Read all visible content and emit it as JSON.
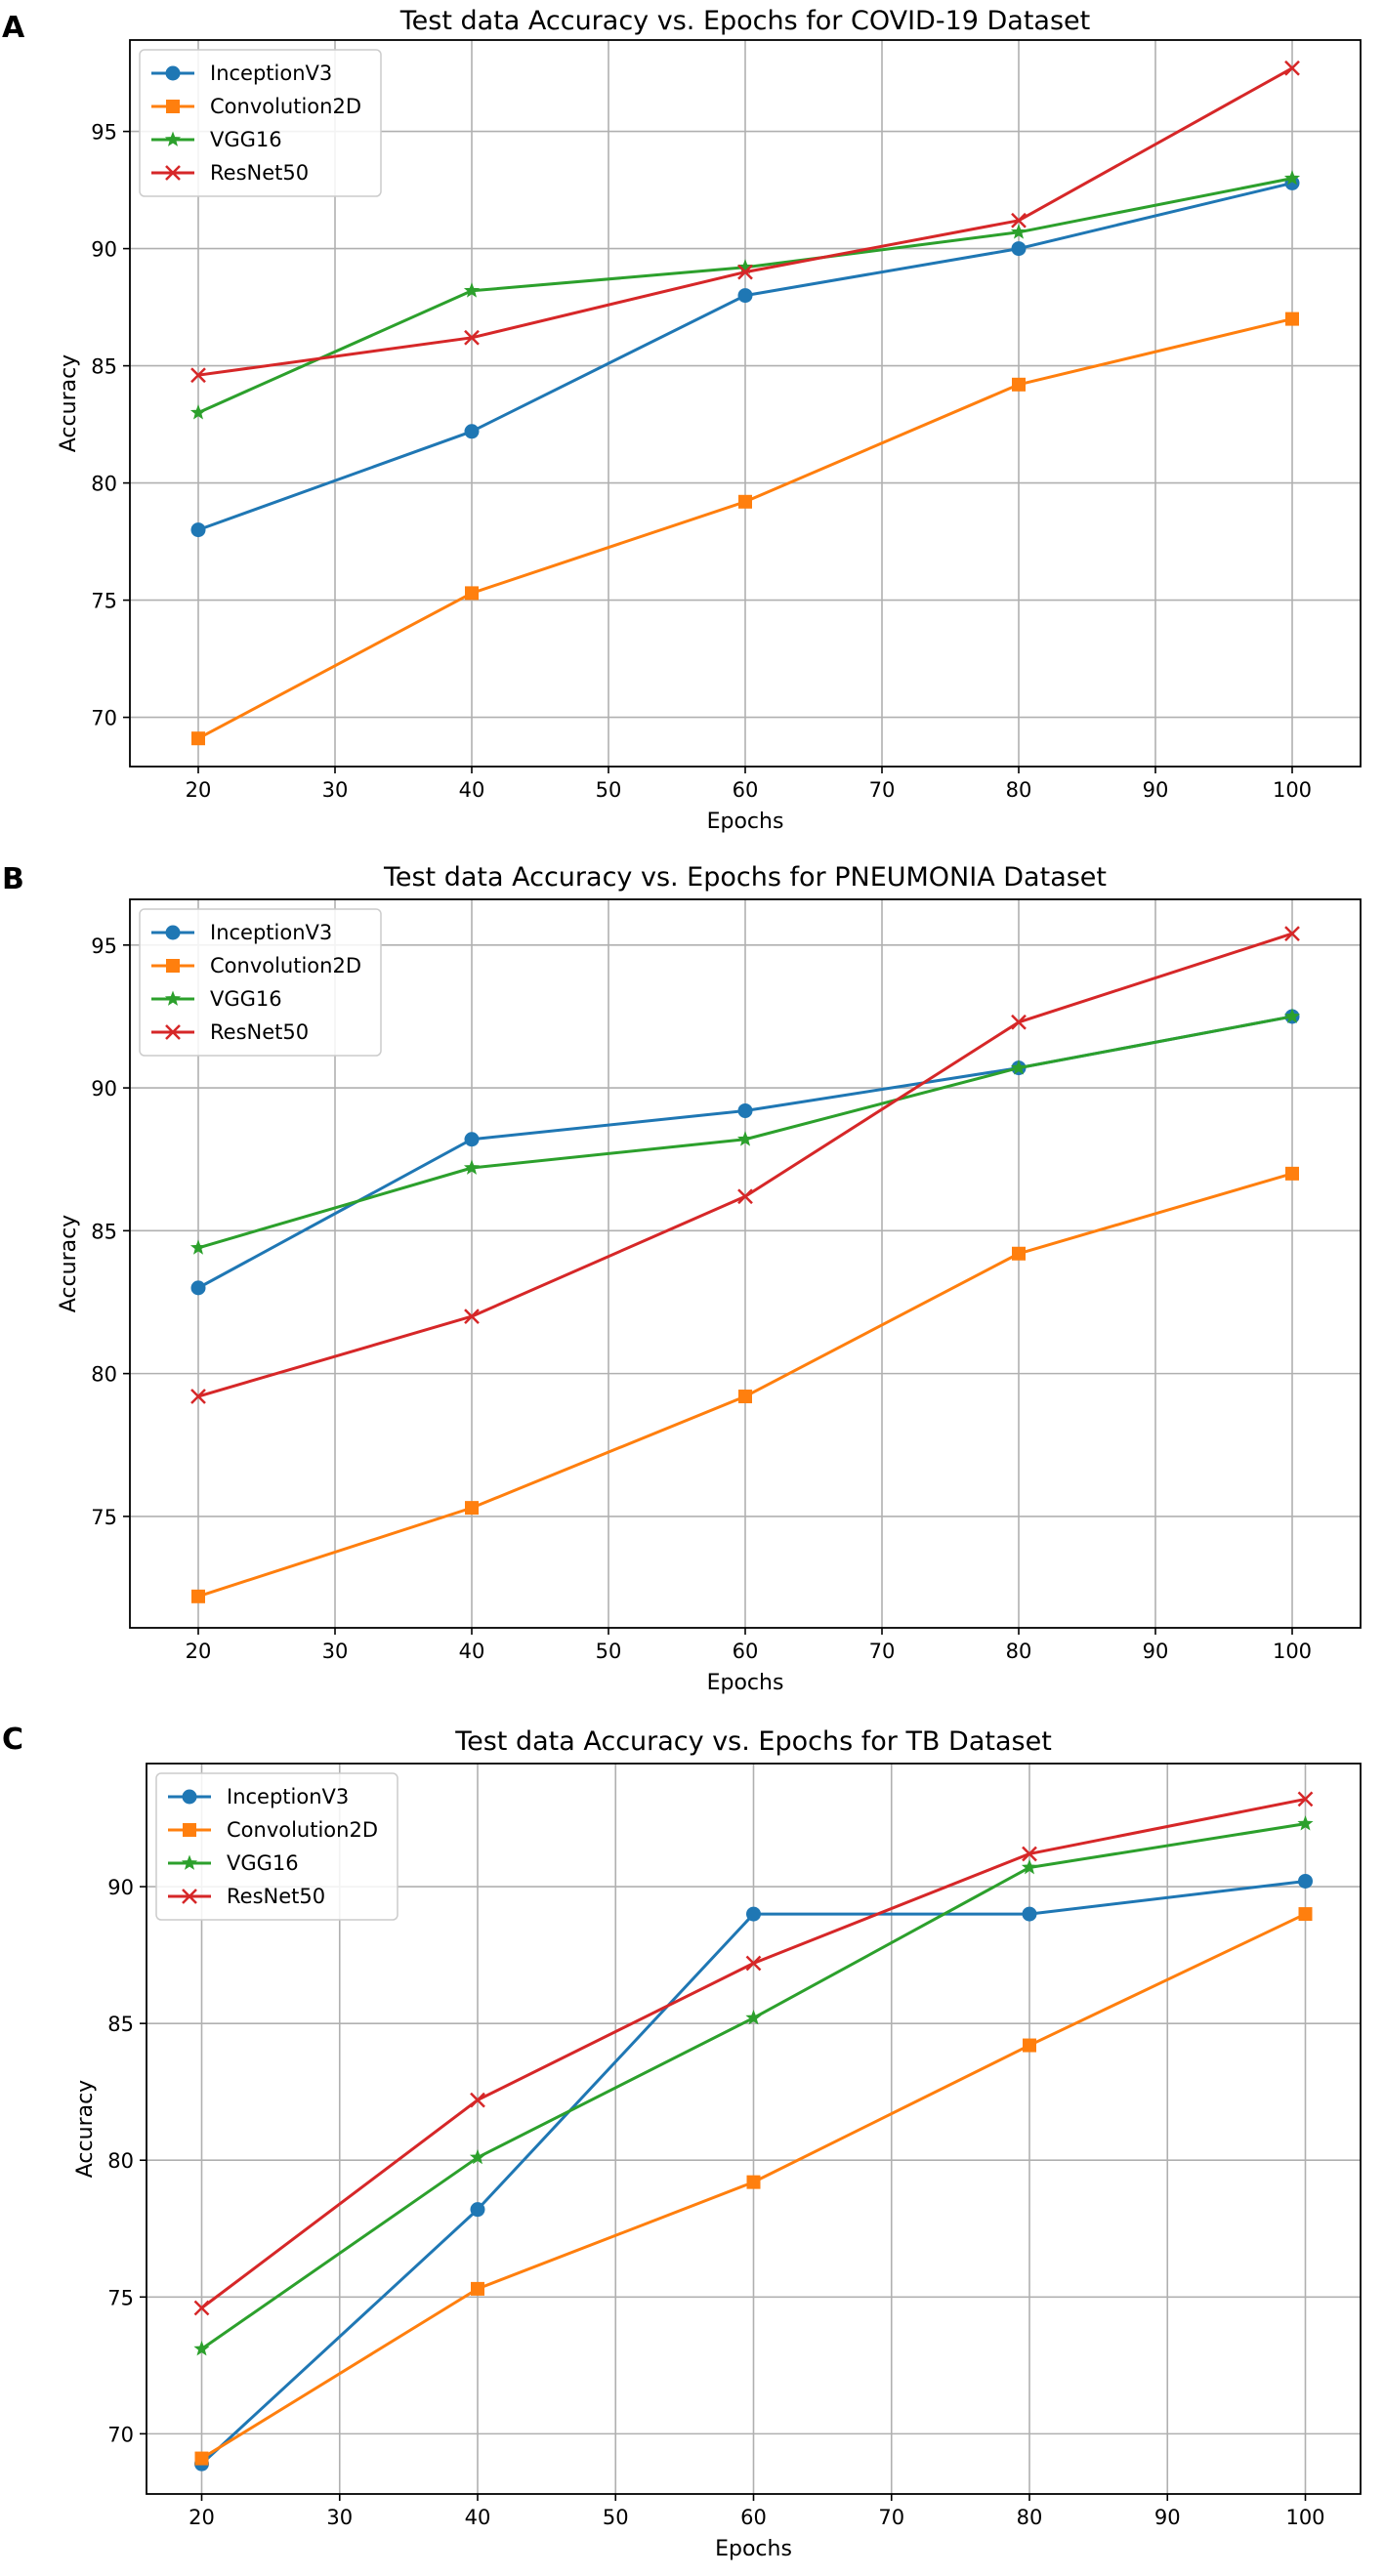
{
  "chart_data": [
    {
      "panel": "A",
      "type": "line",
      "title": "Test data Accuracy vs. Epochs for COVID-19 Dataset",
      "xlabel": "Epochs",
      "ylabel": "Accuracy",
      "xlim": [
        15,
        105
      ],
      "ylim": [
        67.9,
        98.9
      ],
      "xticks": [
        20,
        30,
        40,
        50,
        60,
        70,
        80,
        90,
        100
      ],
      "yticks": [
        70,
        75,
        80,
        85,
        90,
        95
      ],
      "grid": true,
      "legend": "top-left",
      "x": [
        20,
        40,
        60,
        80,
        100
      ],
      "series": [
        {
          "name": "InceptionV3",
          "color": "#1f77b4",
          "marker": "circle",
          "values": [
            78.0,
            82.2,
            88.0,
            90.0,
            92.8
          ]
        },
        {
          "name": "Convolution2D",
          "color": "#ff7f0e",
          "marker": "square",
          "values": [
            69.1,
            75.3,
            79.2,
            84.2,
            87.0
          ]
        },
        {
          "name": "VGG16",
          "color": "#2ca02c",
          "marker": "star",
          "values": [
            83.0,
            88.2,
            89.2,
            90.7,
            93.0
          ]
        },
        {
          "name": "ResNet50",
          "color": "#d62728",
          "marker": "x",
          "values": [
            84.6,
            86.2,
            89.0,
            91.2,
            97.7
          ]
        }
      ]
    },
    {
      "panel": "B",
      "type": "line",
      "title": "Test data Accuracy vs. Epochs for PNEUMONIA Dataset",
      "xlabel": "Epochs",
      "ylabel": "Accuracy",
      "xlim": [
        15,
        105
      ],
      "ylim": [
        71.1,
        96.6
      ],
      "xticks": [
        20,
        30,
        40,
        50,
        60,
        70,
        80,
        90,
        100
      ],
      "yticks": [
        75,
        80,
        85,
        90,
        95
      ],
      "grid": true,
      "legend": "top-left",
      "x": [
        20,
        40,
        60,
        80,
        100
      ],
      "series": [
        {
          "name": "InceptionV3",
          "color": "#1f77b4",
          "marker": "circle",
          "values": [
            83.0,
            88.2,
            89.2,
            90.7,
            92.5
          ]
        },
        {
          "name": "Convolution2D",
          "color": "#ff7f0e",
          "marker": "square",
          "values": [
            72.2,
            75.3,
            79.2,
            84.2,
            87.0
          ]
        },
        {
          "name": "VGG16",
          "color": "#2ca02c",
          "marker": "star",
          "values": [
            84.4,
            87.2,
            88.2,
            90.7,
            92.5
          ]
        },
        {
          "name": "ResNet50",
          "color": "#d62728",
          "marker": "x",
          "values": [
            79.2,
            82.0,
            86.2,
            92.3,
            95.4
          ]
        }
      ]
    },
    {
      "panel": "C",
      "type": "line",
      "title": "Test data Accuracy vs. Epochs for TB Dataset",
      "xlabel": "Epochs",
      "ylabel": "Accuracy",
      "xlim": [
        16,
        104
      ],
      "ylim": [
        67.8,
        94.5
      ],
      "xticks": [
        20,
        30,
        40,
        50,
        60,
        70,
        80,
        90,
        100
      ],
      "yticks": [
        70,
        75,
        80,
        85,
        90
      ],
      "grid": true,
      "legend": "top-left",
      "x": [
        20,
        40,
        60,
        80,
        100
      ],
      "series": [
        {
          "name": "InceptionV3",
          "color": "#1f77b4",
          "marker": "circle",
          "values": [
            68.9,
            78.2,
            89.0,
            89.0,
            90.2
          ]
        },
        {
          "name": "Convolution2D",
          "color": "#ff7f0e",
          "marker": "square",
          "values": [
            69.1,
            75.3,
            79.2,
            84.2,
            89.0
          ]
        },
        {
          "name": "VGG16",
          "color": "#2ca02c",
          "marker": "star",
          "values": [
            73.1,
            80.1,
            85.2,
            90.7,
            92.3
          ]
        },
        {
          "name": "ResNet50",
          "color": "#d62728",
          "marker": "x",
          "values": [
            74.6,
            82.2,
            87.2,
            91.2,
            93.2
          ]
        }
      ]
    }
  ]
}
